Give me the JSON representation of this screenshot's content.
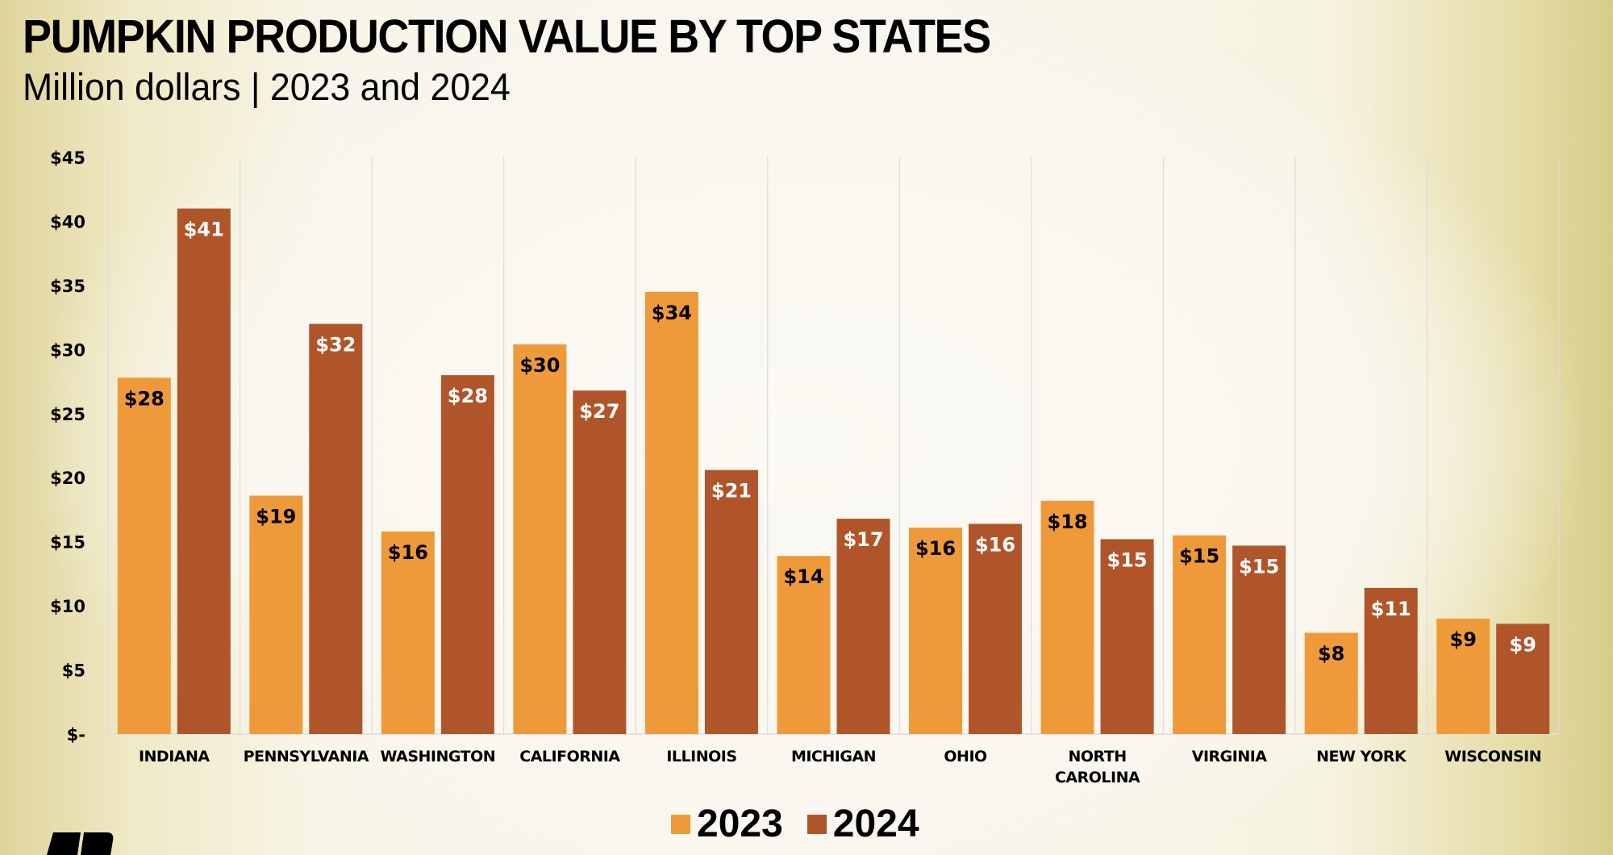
{
  "header": {
    "title": "PUMPKIN PRODUCTION VALUE BY TOP STATES",
    "subtitle": "Million dollars | 2023 and 2024"
  },
  "colors": {
    "series_2023": "#ef9a3a",
    "series_2024": "#b0552a",
    "gridline": "#dcdcdc",
    "label_2023": "#000000",
    "label_2024": "#ffffff"
  },
  "logo": {
    "icon": "brand-logo-icon"
  },
  "chart_data": {
    "type": "bar",
    "title": "PUMPKIN PRODUCTION VALUE BY TOP STATES",
    "subtitle": "Million dollars | 2023 and 2024",
    "xlabel": "",
    "ylabel": "",
    "ylim": [
      0,
      45
    ],
    "grid": "vertical category separators",
    "legend_position": "bottom-center",
    "y_ticks": [
      {
        "value": 0,
        "label": "$-"
      },
      {
        "value": 5,
        "label": "$5"
      },
      {
        "value": 10,
        "label": "$10"
      },
      {
        "value": 15,
        "label": "$15"
      },
      {
        "value": 20,
        "label": "$20"
      },
      {
        "value": 25,
        "label": "$25"
      },
      {
        "value": 30,
        "label": "$30"
      },
      {
        "value": 35,
        "label": "$35"
      },
      {
        "value": 40,
        "label": "$40"
      },
      {
        "value": 45,
        "label": "$45"
      }
    ],
    "categories": [
      [
        "INDIANA"
      ],
      [
        "PENNSYLVANIA"
      ],
      [
        "WASHINGTON"
      ],
      [
        "CALIFORNIA"
      ],
      [
        "ILLINOIS"
      ],
      [
        "MICHIGAN"
      ],
      [
        "OHIO"
      ],
      [
        "NORTH",
        "CAROLINA"
      ],
      [
        "VIRGINIA"
      ],
      [
        "NEW YORK"
      ],
      [
        "WISCONSIN"
      ]
    ],
    "series": [
      {
        "name": "2023",
        "color": "#ef9a3a",
        "values": [
          27.8,
          18.6,
          15.8,
          30.4,
          34.5,
          13.9,
          16.1,
          18.2,
          15.5,
          7.9,
          9.0
        ],
        "labels": [
          "$28",
          "$19",
          "$16",
          "$30",
          "$34",
          "$14",
          "$16",
          "$18",
          "$15",
          "$8",
          "$9"
        ]
      },
      {
        "name": "2024",
        "color": "#b0552a",
        "values": [
          41.0,
          32.0,
          28.0,
          26.8,
          20.6,
          16.8,
          16.4,
          15.2,
          14.7,
          11.4,
          8.6
        ],
        "labels": [
          "$41",
          "$32",
          "$28",
          "$27",
          "$21",
          "$17",
          "$16",
          "$15",
          "$15",
          "$11",
          "$9"
        ]
      }
    ]
  }
}
